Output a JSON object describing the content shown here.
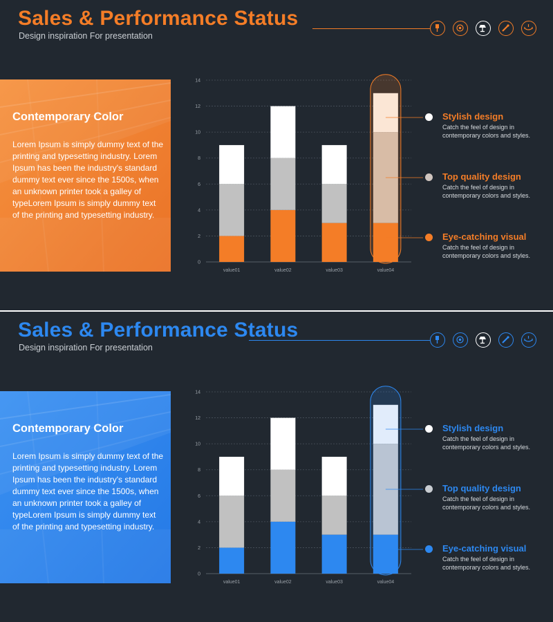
{
  "slides": [
    {
      "theme": "orange",
      "accent": "#f47d27",
      "middle_tone": "#c1c1c1",
      "tall_light": "#fbe6d5",
      "tall_mid": "#d8bca6",
      "title": "Sales & Performance Status",
      "subtitle": "Design inspiration For presentation",
      "icons": [
        "pin-icon",
        "at-sign-icon",
        "desk-lamp-icon",
        "cable-icon",
        "chandelier-icon"
      ],
      "panel": {
        "heading": "Contemporary Color",
        "body": "Lorem Ipsum is simply dummy text of the printing and typesetting industry. Lorem Ipsum has been the industry's standard dummy text ever since the 1500s, when an unknown printer took a galley of typeLorem Ipsum is simply dummy text of the printing and typesetting industry."
      },
      "legend": [
        {
          "title": "Stylish design",
          "desc": "Catch the feel of design in contemporary colors and styles.",
          "dot_color": "#ffffff"
        },
        {
          "title": "Top quality design",
          "desc": "Catch the feel of design in contemporary colors and styles.",
          "dot_color": "#cfc5bf"
        },
        {
          "title": "Eye-catching visual",
          "desc": "Catch the feel of design in contemporary colors and styles.",
          "dot_color": "#f47d27"
        }
      ]
    },
    {
      "theme": "blue",
      "accent": "#2d88f0",
      "middle_tone": "#c1c1c1",
      "tall_light": "#e1ecfb",
      "tall_mid": "#b9c4d3",
      "title": "Sales & Performance Status",
      "subtitle": "Design inspiration For presentation",
      "icons": [
        "pin-icon",
        "at-sign-icon",
        "desk-lamp-icon",
        "cable-icon",
        "chandelier-icon"
      ],
      "panel": {
        "heading": "Contemporary Color",
        "body": "Lorem Ipsum is simply dummy text of the printing and typesetting industry. Lorem Ipsum has been the industry's standard dummy text ever since the 1500s, when an unknown printer took a galley of typeLorem Ipsum is simply dummy text of the printing and typesetting industry."
      },
      "legend": [
        {
          "title": "Stylish design",
          "desc": "Catch the feel of design in contemporary colors and styles.",
          "dot_color": "#ffffff"
        },
        {
          "title": "Top quality design",
          "desc": "Catch the feel of design in contemporary colors and styles.",
          "dot_color": "#c8ccd1"
        },
        {
          "title": "Eye-catching visual",
          "desc": "Catch the feel of design in contemporary colors and styles.",
          "dot_color": "#2d88f0"
        }
      ]
    }
  ],
  "chart_data": [
    {
      "type": "bar",
      "stacked": true,
      "categories": [
        "value01",
        "value02",
        "value03",
        "value04"
      ],
      "series": [
        {
          "name": "Eye-catching visual",
          "values": [
            2,
            4,
            3,
            3
          ]
        },
        {
          "name": "Top quality design",
          "values": [
            4,
            4,
            3,
            7
          ]
        },
        {
          "name": "Stylish design",
          "values": [
            3,
            4,
            3,
            3
          ]
        }
      ],
      "y_ticks": [
        0,
        2,
        4,
        6,
        8,
        10,
        12,
        14
      ],
      "ylim": [
        0,
        14
      ],
      "highlight_category": "value04",
      "grid": true
    },
    {
      "type": "bar",
      "stacked": true,
      "categories": [
        "value01",
        "value02",
        "value03",
        "value04"
      ],
      "series": [
        {
          "name": "Eye-catching visual",
          "values": [
            2,
            4,
            3,
            3
          ]
        },
        {
          "name": "Top quality design",
          "values": [
            4,
            4,
            3,
            7
          ]
        },
        {
          "name": "Stylish design",
          "values": [
            3,
            4,
            3,
            3
          ]
        }
      ],
      "y_ticks": [
        0,
        2,
        4,
        6,
        8,
        10,
        12,
        14
      ],
      "ylim": [
        0,
        14
      ],
      "highlight_category": "value04",
      "grid": true
    }
  ]
}
